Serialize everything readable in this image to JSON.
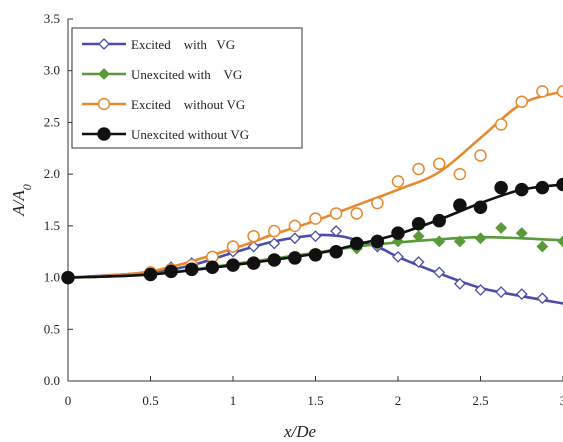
{
  "chart_data": {
    "type": "line",
    "title": "",
    "xlabel": "x/De",
    "ylabel_main": "A/A",
    "ylabel_sub": "0",
    "xlim": [
      0,
      3
    ],
    "ylim": [
      0,
      3.5
    ],
    "x_ticks": [
      "0",
      "0.5",
      "1",
      "1.5",
      "2",
      "2.5",
      "3"
    ],
    "y_ticks": [
      "0.0",
      "0.5",
      "1.0",
      "1.5",
      "2.0",
      "2.5",
      "3.0",
      "3.5"
    ],
    "grid": false,
    "legend_position": "top-left",
    "series": [
      {
        "name": "Excited    with   VG",
        "color": "#4a4ea8",
        "marker": "diamond-open",
        "points": {
          "x": [
            0,
            0.5,
            0.625,
            0.75,
            0.875,
            1.0,
            1.125,
            1.25,
            1.375,
            1.5,
            1.625,
            1.75,
            1.875,
            2.0,
            2.125,
            2.25,
            2.375,
            2.5,
            2.625,
            2.75,
            2.875
          ],
          "y": [
            1.0,
            1.04,
            1.1,
            1.14,
            1.2,
            1.25,
            1.3,
            1.33,
            1.38,
            1.4,
            1.45,
            1.33,
            1.3,
            1.2,
            1.15,
            1.05,
            0.94,
            0.88,
            0.86,
            0.84,
            0.8
          ]
        },
        "curve": {
          "x": [
            0,
            0.5,
            0.75,
            1.0,
            1.25,
            1.5,
            1.65,
            1.75,
            1.9,
            2.0,
            2.25,
            2.5,
            2.75,
            3.0
          ],
          "y": [
            1.0,
            1.05,
            1.12,
            1.24,
            1.35,
            1.41,
            1.4,
            1.36,
            1.28,
            1.2,
            1.04,
            0.9,
            0.82,
            0.75
          ]
        }
      },
      {
        "name": "Unexcited with    VG",
        "color": "#5a9a3a",
        "marker": "diamond-filled",
        "points": {
          "x": [
            1.75,
            1.875,
            2.0,
            2.125,
            2.25,
            2.375,
            2.5,
            2.625,
            2.75,
            2.875,
            3.0
          ],
          "y": [
            1.28,
            1.32,
            1.35,
            1.4,
            1.35,
            1.35,
            1.38,
            1.48,
            1.43,
            1.3,
            1.35
          ]
        },
        "curve": {
          "x": [
            0,
            0.5,
            1.0,
            1.5,
            1.75,
            2.0,
            2.25,
            2.5,
            2.75,
            3.0
          ],
          "y": [
            1.0,
            1.03,
            1.13,
            1.24,
            1.3,
            1.34,
            1.37,
            1.39,
            1.38,
            1.36
          ]
        }
      },
      {
        "name": "Excited    without VG",
        "color": "#e58a2e",
        "marker": "circle-open",
        "points": {
          "x": [
            0,
            0.5,
            0.625,
            0.75,
            0.875,
            1.0,
            1.125,
            1.25,
            1.375,
            1.5,
            1.625,
            1.75,
            1.875,
            2.0,
            2.125,
            2.25,
            2.375,
            2.5,
            2.625,
            2.75,
            2.875,
            3.0
          ],
          "y": [
            1.0,
            1.05,
            1.08,
            1.12,
            1.2,
            1.3,
            1.4,
            1.45,
            1.5,
            1.57,
            1.62,
            1.62,
            1.72,
            1.93,
            2.05,
            2.1,
            2.0,
            2.18,
            2.48,
            2.7,
            2.8,
            2.8
          ]
        },
        "curve": {
          "x": [
            0,
            0.5,
            1.0,
            1.25,
            1.5,
            1.75,
            2.0,
            2.25,
            2.5,
            2.75,
            3.0
          ],
          "y": [
            1.0,
            1.06,
            1.28,
            1.42,
            1.55,
            1.7,
            1.85,
            2.02,
            2.35,
            2.68,
            2.8
          ]
        }
      },
      {
        "name": "Unexcited without VG",
        "color": "#111111",
        "marker": "circle-filled",
        "points": {
          "x": [
            0,
            0.5,
            0.625,
            0.75,
            0.875,
            1.0,
            1.125,
            1.25,
            1.375,
            1.5,
            1.625,
            1.75,
            1.875,
            2.0,
            2.125,
            2.25,
            2.375,
            2.5,
            2.625,
            2.75,
            2.875,
            3.0
          ],
          "y": [
            1.0,
            1.03,
            1.06,
            1.08,
            1.1,
            1.12,
            1.14,
            1.17,
            1.19,
            1.22,
            1.25,
            1.33,
            1.35,
            1.43,
            1.52,
            1.55,
            1.7,
            1.68,
            1.87,
            1.85,
            1.87,
            1.9
          ]
        },
        "curve": {
          "x": [
            0,
            0.5,
            1.0,
            1.5,
            1.75,
            2.0,
            2.25,
            2.5,
            2.75,
            3.0
          ],
          "y": [
            1.0,
            1.03,
            1.12,
            1.23,
            1.32,
            1.42,
            1.56,
            1.72,
            1.85,
            1.9
          ]
        }
      }
    ]
  }
}
